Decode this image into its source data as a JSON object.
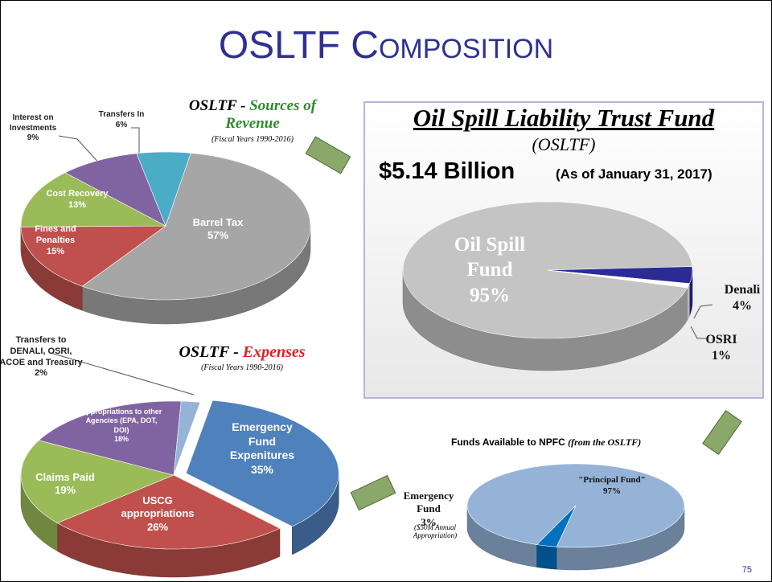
{
  "page_title": "OSLTF Composition",
  "page_number": "75",
  "chart_data": [
    {
      "type": "pie",
      "title": [
        "OSLTF -",
        "Sources of Revenue"
      ],
      "subtitle": "(Fiscal Years 1990-2016)",
      "categories": [
        "Barrel Tax",
        "Fines and Penalties",
        "Cost Recovery",
        "Interest on Investments",
        "Transfers In"
      ],
      "values": [
        57,
        15,
        13,
        9,
        6
      ],
      "value_labels": [
        "57%",
        "15%",
        "13%",
        "9%",
        "6%"
      ],
      "colors": [
        "#a6a6a6",
        "#c0504d",
        "#9bbb59",
        "#8064a2",
        "#4bacc6"
      ]
    },
    {
      "type": "pie",
      "title": "Oil Spill Liability Trust Fund",
      "subtitle": "(OSLTF)",
      "total": "$5.14 Billion",
      "note": "(As of January 31, 2017)",
      "categories": [
        "Oil Spill Fund",
        "Denali",
        "OSRI"
      ],
      "values": [
        95,
        4,
        1
      ],
      "value_labels": [
        "95%",
        "4%",
        "1%"
      ],
      "colors": [
        "#c4c4c4",
        "#2b2b96",
        "#ffffff"
      ]
    },
    {
      "type": "pie",
      "title": [
        "OSLTF -",
        "Expenses"
      ],
      "subtitle": "(Fiscal Years 1990-2016)",
      "categories": [
        "Emergency Fund Expenitures",
        "USCG appropriations",
        "Claims Paid",
        "Appropriations to other Agencies (EPA, DOT, DOI)",
        "Transfers to DENALI, OSRI, ACOE and Treasury"
      ],
      "values": [
        35,
        26,
        19,
        18,
        2
      ],
      "value_labels": [
        "35%",
        "26%",
        "19%",
        "18%",
        "2%"
      ],
      "colors": [
        "#4f81bd",
        "#c0504d",
        "#9bbb59",
        "#8064a2",
        "#95b3d7"
      ]
    },
    {
      "type": "pie",
      "title": [
        "Funds Available to NPFC",
        "(from the OSLTF)"
      ],
      "categories": [
        "\"Principal Fund\"",
        "Emergency Fund"
      ],
      "values": [
        97,
        3
      ],
      "value_labels": [
        "97%",
        "3%"
      ],
      "note": "($50M Annual Appropriation)",
      "colors": [
        "#95b3d7",
        "#0070c0"
      ]
    }
  ]
}
